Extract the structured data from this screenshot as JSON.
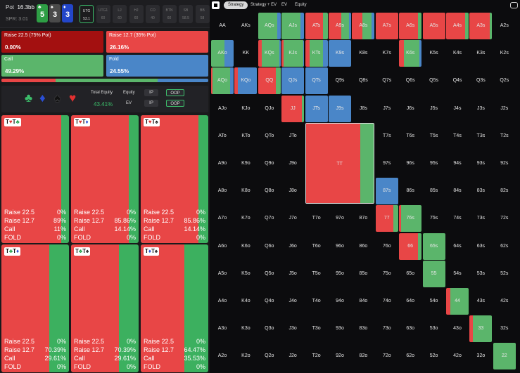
{
  "pot": {
    "label": "Pot",
    "value": "16.3bb",
    "spr": "SPR: 3.01"
  },
  "board": [
    {
      "rank": "5",
      "suit": "♣",
      "color": "#2e9e45"
    },
    {
      "rank": "3",
      "suit": "♠",
      "color": "#4a4a4a"
    },
    {
      "rank": "3",
      "suit": "♦",
      "color": "#2346c9"
    }
  ],
  "positions": [
    {
      "name": "UTG",
      "stack": "53.1",
      "active": true
    },
    {
      "name": "UTG1",
      "stack": "60"
    },
    {
      "name": "LJ",
      "stack": "60"
    },
    {
      "name": "HJ",
      "stack": "60"
    },
    {
      "name": "CO",
      "stack": "40"
    },
    {
      "name": "BTN",
      "stack": "60"
    },
    {
      "name": "SB",
      "stack": "58.5"
    },
    {
      "name": "BB",
      "stack": "58"
    }
  ],
  "actions": [
    {
      "label": "Raise 22.5 (75% Pot)",
      "pct": "0.00%",
      "color": "#a31010"
    },
    {
      "label": "Raise 12.7 (35% Pot)",
      "pct": "26.16%",
      "color": "#e84646"
    },
    {
      "label": "Call",
      "pct": "49.29%",
      "color": "#5bb56b"
    },
    {
      "label": "Fold",
      "pct": "24.55%",
      "color": "#4a86c8"
    }
  ],
  "freqbar": [
    0.0,
    26.16,
    49.29,
    24.55
  ],
  "equity": {
    "suits": [
      {
        "glyph": "♣",
        "color": "#3cbf6b"
      },
      {
        "glyph": "♦",
        "color": "#2a4fd6"
      },
      {
        "glyph": "♠",
        "color": "#111111"
      },
      {
        "glyph": "♥",
        "color": "#e23030"
      }
    ],
    "total_label": "Total Equity",
    "total_value": "43.41%",
    "equity_label": "Equity",
    "ev_label": "EV",
    "ip": "IP",
    "oop": "OOP"
  },
  "combos": [
    {
      "c1": "T",
      "s1": "♥",
      "k1": "r",
      "c2": "T",
      "s2": "♣",
      "k2": "g",
      "red": 89,
      "rows": [
        [
          "Raise 22.5",
          "0%"
        ],
        [
          "Raise 12.7",
          "89%"
        ],
        [
          "Call",
          "11%"
        ],
        [
          "FOLD",
          "0%"
        ]
      ]
    },
    {
      "c1": "T",
      "s1": "♥",
      "k1": "r",
      "c2": "T",
      "s2": "♦",
      "k2": "b",
      "red": 85.86,
      "rows": [
        [
          "Raise 22.5",
          "0%"
        ],
        [
          "Raise 12.7",
          "85.86%"
        ],
        [
          "Call",
          "14.14%"
        ],
        [
          "FOLD",
          "0%"
        ]
      ]
    },
    {
      "c1": "T",
      "s1": "♥",
      "k1": "r",
      "c2": "T",
      "s2": "♠",
      "k2": "k",
      "red": 85.86,
      "rows": [
        [
          "Raise 22.5",
          "0%"
        ],
        [
          "Raise 12.7",
          "85.86%"
        ],
        [
          "Call",
          "14.14%"
        ],
        [
          "FOLD",
          "0%"
        ]
      ]
    },
    {
      "c1": "T",
      "s1": "♣",
      "k1": "g",
      "c2": "T",
      "s2": "♦",
      "k2": "b",
      "red": 70.39,
      "rows": [
        [
          "Raise 22.5",
          "0%"
        ],
        [
          "Raise 12.7",
          "70.39%"
        ],
        [
          "Call",
          "29.61%"
        ],
        [
          "FOLD",
          "0%"
        ]
      ]
    },
    {
      "c1": "T",
      "s1": "♣",
      "k1": "g",
      "c2": "T",
      "s2": "♠",
      "k2": "k",
      "red": 70.39,
      "rows": [
        [
          "Raise 22.5",
          "0%"
        ],
        [
          "Raise 12.7",
          "70.39%"
        ],
        [
          "Call",
          "29.61%"
        ],
        [
          "FOLD",
          "0%"
        ]
      ]
    },
    {
      "c1": "T",
      "s1": "♦",
      "k1": "b",
      "c2": "T",
      "s2": "♠",
      "k2": "k",
      "red": 64.47,
      "rows": [
        [
          "Raise 22.5",
          "0%"
        ],
        [
          "Raise 12.7",
          "64.47%"
        ],
        [
          "Call",
          "35.53%"
        ],
        [
          "FOLD",
          "0%"
        ]
      ]
    }
  ],
  "tabs": [
    "Strategy",
    "Strategy + EV",
    "EV",
    "Equity"
  ],
  "ranks": [
    "A",
    "K",
    "Q",
    "J",
    "T",
    "9",
    "8",
    "7",
    "6",
    "5",
    "4",
    "3",
    "2"
  ],
  "strategy_mix": {
    "AQs": [
      0,
      0,
      0.85,
      0.15
    ],
    "AJs": [
      0,
      0,
      0.85,
      0.15
    ],
    "ATs": [
      0,
      0.8,
      0.2,
      0
    ],
    "A9s": [
      0,
      0.55,
      0.35,
      0.1
    ],
    "A8s": [
      0,
      0.45,
      0.4,
      0.15
    ],
    "A7s": [
      0,
      1,
      0,
      0
    ],
    "A6s": [
      0,
      0.85,
      0.15,
      0
    ],
    "A5s": [
      0,
      1,
      0,
      0
    ],
    "A4s": [
      0,
      0.85,
      0.15,
      0
    ],
    "A3s": [
      0,
      0.9,
      0.1,
      0
    ],
    "AKo": [
      0,
      0,
      0.6,
      0.4
    ],
    "KQs": [
      0,
      0.15,
      0.8,
      0.05
    ],
    "KJs": [
      0,
      0.1,
      0.85,
      0.05
    ],
    "KTs": [
      0,
      0.2,
      0.6,
      0.2
    ],
    "K9s": [
      0,
      0,
      0,
      1
    ],
    "K6s": [
      0,
      0.2,
      0.7,
      0.1
    ],
    "AQo": [
      0,
      0.05,
      0.8,
      0.15
    ],
    "KQo": [
      0,
      0.15,
      0,
      0.85
    ],
    "QQ": [
      0,
      0.8,
      0.2,
      0
    ],
    "QJs": [
      0,
      0,
      0,
      1
    ],
    "QTs": [
      0,
      0,
      0,
      1
    ],
    "JJ": [
      0,
      0.9,
      0.1,
      0
    ],
    "JTs": [
      0,
      0,
      0,
      1
    ],
    "J9s": [
      0,
      0,
      0,
      1
    ],
    "87s": [
      0,
      0,
      0,
      1
    ],
    "77": [
      0,
      0.8,
      0.2,
      0
    ],
    "76s": [
      0,
      0.1,
      0.9,
      0
    ],
    "66": [
      0,
      0.85,
      0.15,
      0
    ],
    "65s": [
      0,
      0,
      1,
      0
    ],
    "55": [
      0,
      0,
      1,
      0
    ],
    "44": [
      0,
      0.2,
      0.8,
      0
    ],
    "33": [
      0,
      0.15,
      0.85,
      0
    ],
    "22": [
      0,
      0,
      1,
      0
    ]
  }
}
